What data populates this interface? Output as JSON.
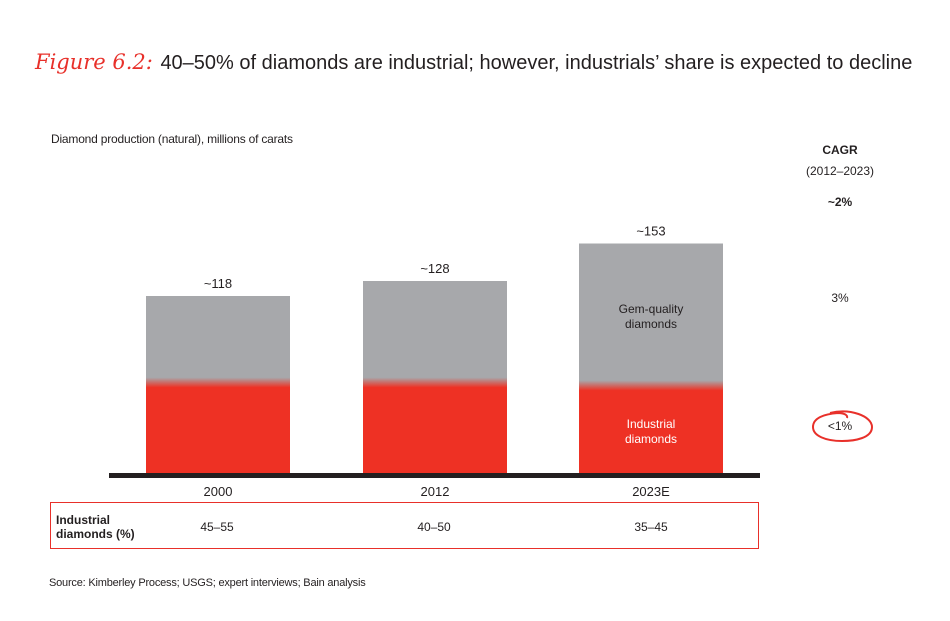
{
  "title": {
    "figure_label": "Figure 6.2:",
    "text": "40–50% of diamonds are industrial; however, industrials’ share is expected to decline"
  },
  "colors": {
    "industrial": "#ee3124",
    "gem": "#a7a8ab",
    "axis": "#231f20",
    "accent": "#e8302a"
  },
  "chart_data": {
    "type": "bar",
    "stacked": true,
    "title": "40–50% of diamonds are industrial; however, industrials’ share is expected to decline",
    "ylabel": "Diamond production (natural), millions of carats",
    "xlabel": "",
    "categories": [
      "2000",
      "2012",
      "2023E"
    ],
    "totals": [
      118,
      128,
      153
    ],
    "total_labels": [
      "~118",
      "~128",
      "~153"
    ],
    "series": [
      {
        "name": "Industrial diamonds",
        "values": [
          57,
          57,
          55
        ]
      },
      {
        "name": "Gem-quality diamonds",
        "values": [
          61,
          71,
          98
        ]
      }
    ],
    "segment_labels": {
      "gem": "Gem-quality diamonds",
      "industrial": "Industrial diamonds"
    },
    "ylim": [
      0,
      160
    ],
    "grid": false,
    "legend": "inline-on-last-bar"
  },
  "cagr": {
    "header": "CAGR",
    "period": "(2012–2023)",
    "total": "~2%",
    "gem": "3%",
    "industrial": "<1%"
  },
  "table": {
    "row_label_line1": "Industrial",
    "row_label_line2": "diamonds (%)",
    "values": [
      "45–55",
      "40–50",
      "35–45"
    ]
  },
  "source": "Source:  Kimberley Process; USGS; expert interviews; Bain analysis"
}
